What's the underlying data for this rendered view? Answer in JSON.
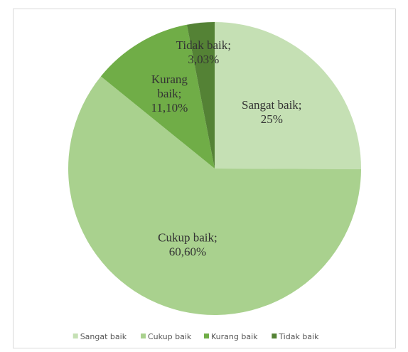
{
  "chart_data": {
    "type": "pie",
    "categories": [
      "Sangat baik",
      "Cukup baik",
      "Kurang baik",
      "Tidak baik"
    ],
    "values": [
      25,
      60.6,
      11.1,
      3.03
    ],
    "value_labels": [
      "Sangat baik;\n25%",
      "Cukup baik;\n60,60%",
      "Kurang\nbaik;\n11,10%",
      "Tidak baik;\n3,03%"
    ],
    "colors": [
      "#c5e0b4",
      "#a9d18e",
      "#70ad47",
      "#548235"
    ],
    "legend": "bottom"
  }
}
